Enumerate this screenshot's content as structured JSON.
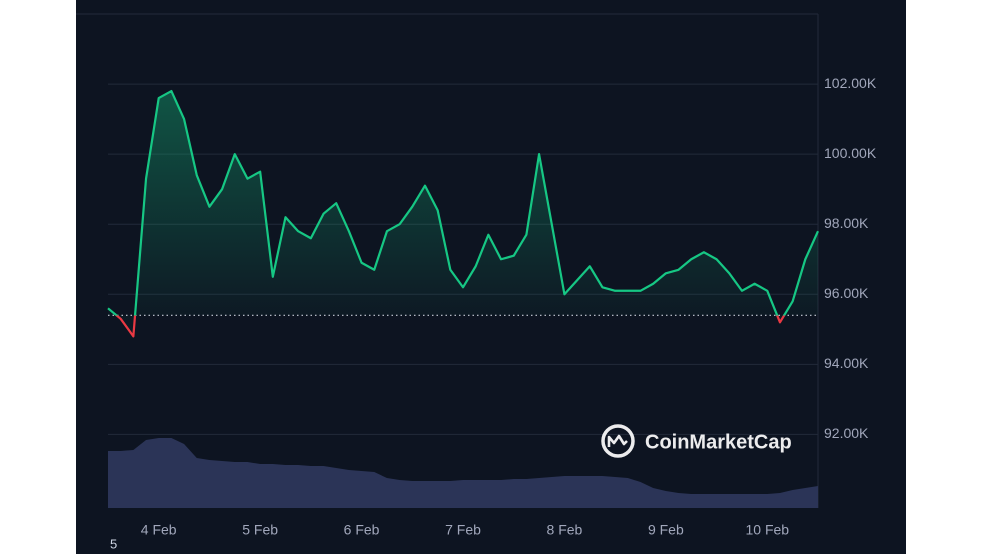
{
  "chart_data": {
    "type": "line",
    "categories": [
      null,
      null,
      null,
      null,
      "4 Feb",
      null,
      null,
      null,
      null,
      null,
      null,
      null,
      "5 Feb",
      null,
      null,
      null,
      null,
      null,
      null,
      null,
      "6 Feb",
      null,
      null,
      null,
      null,
      null,
      null,
      null,
      "7 Feb",
      null,
      null,
      null,
      null,
      null,
      null,
      null,
      "8 Feb",
      null,
      null,
      null,
      null,
      null,
      null,
      null,
      "9 Feb",
      null,
      null,
      null,
      null,
      null,
      null,
      null,
      "10 Feb",
      null,
      null,
      null,
      null
    ],
    "series": [
      {
        "color": "#16c784",
        "negative_color": "#ea3943",
        "values": [
          95600,
          95300,
          94800,
          99300,
          101600,
          101800,
          101000,
          99400,
          98500,
          99000,
          100000,
          99300,
          99500,
          96500,
          98200,
          97800,
          97600,
          98300,
          98600,
          97800,
          96900,
          96700,
          97800,
          98000,
          98500,
          99100,
          98400,
          96700,
          96200,
          96800,
          97700,
          97000,
          97100,
          97700,
          100000,
          98000,
          96000,
          96400,
          96800,
          96200,
          96100,
          96100,
          96100,
          96300,
          96600,
          96700,
          97000,
          97200,
          97000,
          96600,
          96100,
          96300,
          96100,
          95200,
          95800,
          97000,
          97800
        ]
      }
    ],
    "volume": {
      "color": "#2b3457",
      "axis": "y2",
      "values": [
        57,
        57,
        58,
        68,
        70,
        70,
        64,
        50,
        48,
        47,
        46,
        46,
        44,
        44,
        43,
        43,
        42,
        42,
        40,
        38,
        37,
        36,
        30,
        28,
        27,
        27,
        27,
        27,
        28,
        28,
        28,
        28,
        29,
        29,
        30,
        31,
        32,
        32,
        32,
        32,
        31,
        30,
        26,
        20,
        17,
        15,
        14,
        14,
        14,
        14,
        14,
        14,
        14,
        15,
        18,
        20,
        22
      ]
    },
    "baseline": 95400,
    "ylim": [
      89900,
      104000
    ],
    "yticks": [
      {
        "value": 92000,
        "label": "92.00K"
      },
      {
        "value": 94000,
        "label": "94.00K"
      },
      {
        "value": 96000,
        "label": "96.00K"
      },
      {
        "value": 98000,
        "label": "98.00K"
      },
      {
        "value": 100000,
        "label": "100.00K"
      },
      {
        "value": 102000,
        "label": "102.00K"
      }
    ],
    "y2lim": [
      0,
      100
    ],
    "grid": true,
    "watermark": "CoinMarketCap",
    "corner_text": "5"
  }
}
